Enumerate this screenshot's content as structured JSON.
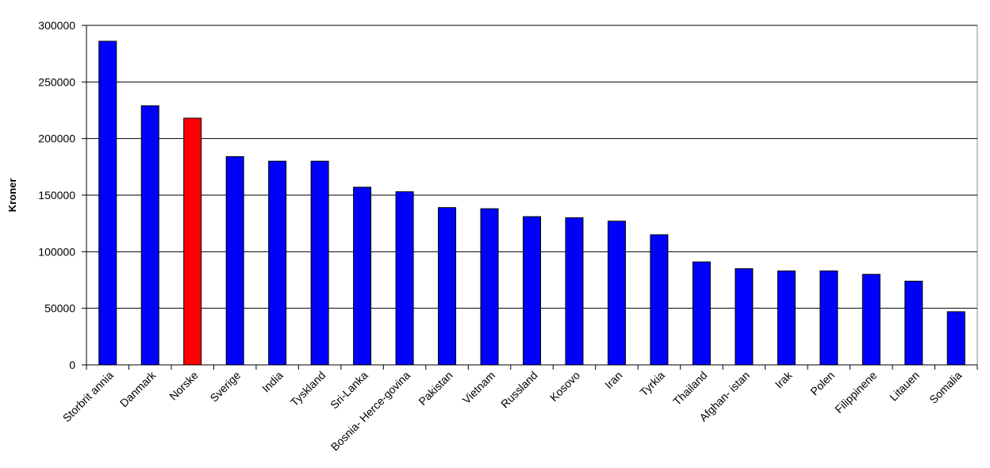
{
  "chart_data": {
    "type": "bar",
    "y_label": "Kroner",
    "categories": [
      "Storbrit annia",
      "Danmark",
      "Norske",
      "Sverige",
      "India",
      "Tyskland",
      "Sri-Lanka",
      "Bosnia- Herce-govina",
      "Pakistan",
      "Vietnam",
      "Russland",
      "Kosovo",
      "Iran",
      "Tyrkia",
      "Thailand",
      "Afghan- istan",
      "Irak",
      "Polen",
      "Filippinene",
      "Litauen",
      "Somalia"
    ],
    "values": [
      286000,
      229000,
      218000,
      184000,
      180000,
      180000,
      157000,
      153000,
      139000,
      138000,
      131000,
      130000,
      127000,
      115000,
      91000,
      85000,
      83000,
      83000,
      80000,
      74000,
      47000
    ],
    "colors": [
      "#0000ff",
      "#0000ff",
      "#ff0000",
      "#0000ff",
      "#0000ff",
      "#0000ff",
      "#0000ff",
      "#0000ff",
      "#0000ff",
      "#0000ff",
      "#0000ff",
      "#0000ff",
      "#0000ff",
      "#0000ff",
      "#0000ff",
      "#0000ff",
      "#0000ff",
      "#0000ff",
      "#0000ff",
      "#0000ff",
      "#0000ff"
    ],
    "ylim": [
      0,
      300000
    ],
    "yticks": [
      0,
      50000,
      100000,
      150000,
      200000,
      250000,
      300000
    ],
    "grid": true
  }
}
